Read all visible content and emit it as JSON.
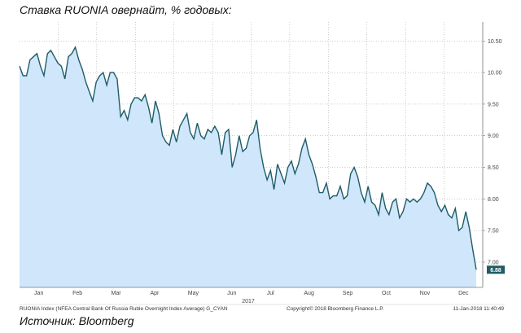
{
  "title": "Ставка RUONIA овернайт, % годовых:",
  "source": "Источник: Bloomberg",
  "footer": {
    "index_name": "RUONIA Index (NFEA Central Bank Of Russia Ruble Overnight Index Average) G_CYAN",
    "copyright": "Copyright© 2018 Bloomberg Finance L.P.",
    "timestamp": "11-Jan-2018 11:40:49"
  },
  "colors": {
    "line": "#1f5c66",
    "area": "#cfe6fb",
    "grid": "#9a9a9a",
    "last_label_bg": "#1f5c66"
  },
  "chart_data": {
    "type": "area",
    "title": "Ставка RUONIA овернайт, % годовых:",
    "xlabel": "2017",
    "ylabel": "",
    "ylim": [
      6.6,
      10.8
    ],
    "yticks": [
      "10.50",
      "10.00",
      "9.50",
      "9.00",
      "8.50",
      "8.00",
      "7.50",
      "7.00"
    ],
    "y_axis_side": "right",
    "x_tick_labels": [
      "Jan",
      "Feb",
      "Mar",
      "Apr",
      "May",
      "Jun",
      "Jul",
      "Aug",
      "Sep",
      "Oct",
      "Nov",
      "Dec"
    ],
    "grid": true,
    "last_value_label": "6.88",
    "series": [
      {
        "values": [
          10.1,
          9.95,
          9.95,
          10.2,
          10.25,
          10.3,
          10.1,
          9.95,
          10.3,
          10.35,
          10.25,
          10.15,
          10.1,
          9.9,
          10.25,
          10.3,
          10.4,
          10.2,
          10.05,
          9.85,
          9.7,
          9.55,
          9.85,
          9.95,
          10.0,
          9.8,
          10.0,
          10.0,
          9.9,
          9.3,
          9.4,
          9.25,
          9.5,
          9.6,
          9.6,
          9.55,
          9.65,
          9.45,
          9.2,
          9.55,
          9.35,
          9.0,
          8.9,
          8.85,
          9.1,
          8.9,
          9.15,
          9.25,
          9.35,
          9.05,
          8.95,
          9.2,
          9.0,
          8.95,
          9.1,
          9.05,
          9.15,
          9.05,
          8.7,
          9.05,
          9.1,
          8.5,
          8.7,
          9.0,
          8.75,
          8.8,
          9.0,
          9.05,
          9.25,
          8.8,
          8.5,
          8.3,
          8.45,
          8.15,
          8.55,
          8.4,
          8.25,
          8.5,
          8.6,
          8.4,
          8.55,
          8.8,
          8.95,
          8.7,
          8.55,
          8.35,
          8.1,
          8.1,
          8.25,
          8.0,
          8.05,
          8.05,
          8.2,
          8.0,
          8.05,
          8.4,
          8.5,
          8.35,
          8.1,
          7.95,
          8.2,
          7.95,
          7.9,
          7.75,
          8.1,
          7.85,
          7.75,
          7.95,
          8.0,
          7.7,
          7.8,
          8.0,
          7.95,
          8.0,
          7.95,
          8.0,
          8.1,
          8.25,
          8.2,
          8.1,
          7.9,
          7.8,
          7.9,
          7.75,
          7.7,
          7.85,
          7.5,
          7.55,
          7.8,
          7.55,
          7.2,
          6.88
        ]
      }
    ]
  }
}
